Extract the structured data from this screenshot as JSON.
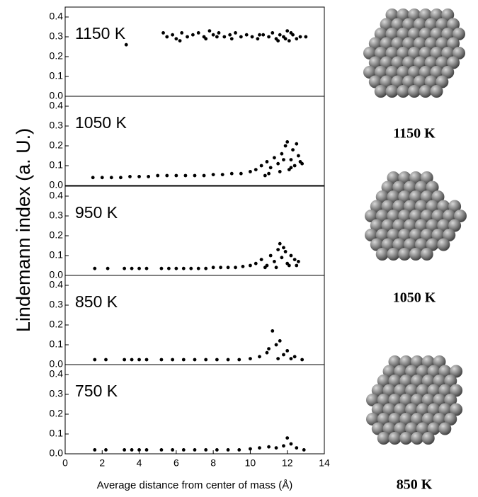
{
  "figure": {
    "xlabel": "Average distance from center of mass (Å)",
    "ylabel": "Lindemann index (a. U.)"
  },
  "images": [
    {
      "label": "1150 K"
    },
    {
      "label": "1050 K"
    },
    {
      "label": "850 K"
    }
  ],
  "chart_data": [
    {
      "type": "scatter",
      "label": "1150 K",
      "color": "#000000",
      "xlim": [
        0,
        14
      ],
      "ylim": [
        0,
        0.45
      ],
      "yticks": [
        {
          "value": 0,
          "label": "0.0"
        },
        0.1,
        0.2,
        0.3,
        0.4
      ],
      "x": [
        3.3,
        5.3,
        5.5,
        5.8,
        6.0,
        6.3,
        6.6,
        6.9,
        7.2,
        7.5,
        7.8,
        8.0,
        8.3,
        8.6,
        8.9,
        9.2,
        9.5,
        9.8,
        10.1,
        10.4,
        10.7,
        11.0,
        11.2,
        11.4,
        11.6,
        11.8,
        12.0,
        12.1,
        12.3,
        12.5,
        12.7,
        13.0,
        7.6,
        8.2,
        9.0,
        10.5,
        11.5,
        12.2,
        11.9,
        6.2
      ],
      "y": [
        0.26,
        0.32,
        0.3,
        0.31,
        0.29,
        0.32,
        0.3,
        0.31,
        0.32,
        0.3,
        0.33,
        0.31,
        0.32,
        0.3,
        0.31,
        0.32,
        0.3,
        0.31,
        0.3,
        0.29,
        0.31,
        0.3,
        0.32,
        0.29,
        0.31,
        0.3,
        0.33,
        0.28,
        0.31,
        0.29,
        0.3,
        0.3,
        0.29,
        0.3,
        0.29,
        0.31,
        0.28,
        0.32,
        0.29,
        0.28
      ]
    },
    {
      "type": "scatter",
      "label": "1050 K",
      "color": "#000000",
      "xlim": [
        0,
        14
      ],
      "ylim": [
        0,
        0.45
      ],
      "yticks": [
        {
          "value": 0,
          "label": "0.0"
        },
        0.1,
        0.2,
        0.3,
        0.4
      ],
      "x": [
        1.5,
        2.0,
        2.5,
        3.0,
        3.5,
        4.0,
        4.5,
        5.0,
        5.5,
        6.0,
        6.5,
        7.0,
        7.5,
        8.0,
        8.5,
        9.0,
        9.5,
        10.0,
        10.3,
        10.6,
        10.9,
        11.1,
        11.3,
        11.5,
        11.7,
        11.9,
        12.0,
        12.1,
        12.2,
        12.3,
        12.4,
        12.5,
        12.6,
        12.7,
        11.0,
        11.6,
        12.2,
        12.8,
        10.8,
        11.8
      ],
      "y": [
        0.04,
        0.04,
        0.04,
        0.04,
        0.045,
        0.045,
        0.045,
        0.05,
        0.05,
        0.05,
        0.05,
        0.05,
        0.05,
        0.055,
        0.055,
        0.06,
        0.06,
        0.07,
        0.08,
        0.1,
        0.12,
        0.09,
        0.14,
        0.11,
        0.16,
        0.2,
        0.22,
        0.08,
        0.13,
        0.18,
        0.1,
        0.21,
        0.15,
        0.12,
        0.06,
        0.07,
        0.09,
        0.11,
        0.05,
        0.13
      ]
    },
    {
      "type": "scatter",
      "label": "950 K",
      "color": "#000000",
      "xlim": [
        0,
        14
      ],
      "ylim": [
        0,
        0.45
      ],
      "yticks": [
        {
          "value": 0,
          "label": "0.0"
        },
        0.1,
        0.2,
        0.3,
        0.4
      ],
      "x": [
        1.6,
        2.3,
        3.2,
        3.6,
        4.0,
        4.4,
        5.2,
        5.6,
        6.0,
        6.4,
        6.8,
        7.2,
        7.6,
        8.0,
        8.4,
        8.8,
        9.2,
        9.6,
        10.0,
        10.3,
        10.6,
        10.9,
        11.1,
        11.3,
        11.5,
        11.6,
        11.7,
        11.8,
        11.9,
        12.0,
        12.2,
        12.4,
        12.5,
        12.6,
        11.4,
        10.8,
        12.1
      ],
      "y": [
        0.035,
        0.035,
        0.035,
        0.035,
        0.035,
        0.035,
        0.035,
        0.035,
        0.035,
        0.035,
        0.035,
        0.035,
        0.035,
        0.04,
        0.04,
        0.04,
        0.04,
        0.045,
        0.05,
        0.06,
        0.08,
        0.05,
        0.1,
        0.07,
        0.13,
        0.16,
        0.09,
        0.14,
        0.12,
        0.06,
        0.1,
        0.08,
        0.05,
        0.07,
        0.04,
        0.04,
        0.05
      ]
    },
    {
      "type": "scatter",
      "label": "850 K",
      "color": "#000000",
      "xlim": [
        0,
        14
      ],
      "ylim": [
        0,
        0.45
      ],
      "yticks": [
        {
          "value": 0,
          "label": "0.0"
        },
        0.1,
        0.2,
        0.3,
        0.4
      ],
      "x": [
        1.6,
        2.2,
        3.2,
        3.6,
        4.0,
        4.4,
        5.2,
        5.8,
        6.4,
        7.0,
        7.6,
        8.2,
        8.8,
        9.4,
        10.0,
        10.5,
        10.9,
        11.2,
        11.4,
        11.6,
        11.8,
        12.0,
        12.2,
        12.4,
        12.8,
        11.0,
        11.5
      ],
      "y": [
        0.025,
        0.025,
        0.025,
        0.025,
        0.025,
        0.025,
        0.025,
        0.025,
        0.025,
        0.025,
        0.025,
        0.025,
        0.025,
        0.025,
        0.03,
        0.04,
        0.06,
        0.17,
        0.1,
        0.12,
        0.05,
        0.07,
        0.03,
        0.04,
        0.025,
        0.08,
        0.03
      ]
    },
    {
      "type": "scatter",
      "label": "750 K",
      "color": "#000000",
      "xlim": [
        0,
        14
      ],
      "ylim": [
        0,
        0.45
      ],
      "yticks": [
        {
          "value": 0,
          "label": "0.0"
        },
        0.1,
        0.2,
        0.3,
        0.4
      ],
      "xticks": [
        0,
        2,
        4,
        6,
        8,
        10,
        12,
        14
      ],
      "x": [
        1.6,
        2.2,
        3.2,
        3.6,
        4.0,
        4.4,
        5.2,
        5.8,
        6.4,
        7.0,
        7.6,
        8.2,
        8.8,
        9.4,
        10.0,
        10.5,
        11.0,
        11.4,
        11.8,
        12.0,
        12.2,
        12.5,
        12.9
      ],
      "y": [
        0.02,
        0.02,
        0.02,
        0.02,
        0.02,
        0.02,
        0.02,
        0.02,
        0.02,
        0.02,
        0.02,
        0.02,
        0.02,
        0.02,
        0.025,
        0.03,
        0.035,
        0.03,
        0.04,
        0.08,
        0.05,
        0.03,
        0.02
      ]
    }
  ]
}
